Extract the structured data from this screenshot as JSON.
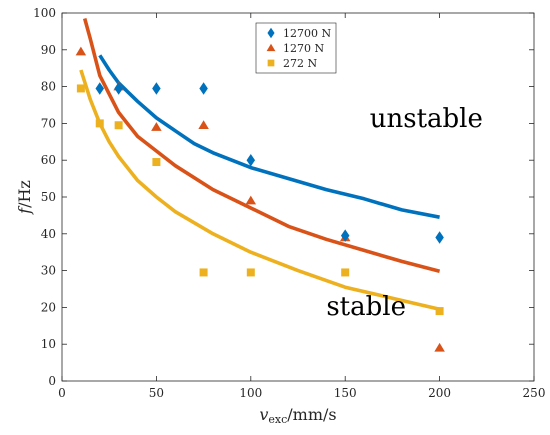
{
  "chart_data": {
    "type": "scatter",
    "xlabel_main": "v",
    "xlabel_sub": "exc",
    "xlabel_unit": "/mm/s",
    "ylabel_main": "f",
    "ylabel_unit": "/Hz",
    "xlim": [
      0,
      250
    ],
    "ylim": [
      0,
      100
    ],
    "xticks": [
      0,
      50,
      100,
      150,
      200,
      250
    ],
    "yticks": [
      0,
      10,
      20,
      30,
      40,
      50,
      60,
      70,
      80,
      90,
      100
    ],
    "grid": false,
    "legend_position": "top-center",
    "annotations": [
      {
        "text": "unstable",
        "x": 163,
        "y": 69
      },
      {
        "text": "stable",
        "x": 140,
        "y": 18
      }
    ],
    "series": [
      {
        "name": "12700 N",
        "color": "#0072BD",
        "marker": "diamond",
        "points": [
          [
            20,
            79.5
          ],
          [
            30,
            79.5
          ],
          [
            50,
            79.5
          ],
          [
            75,
            79.5
          ],
          [
            100,
            60
          ],
          [
            150,
            39.5
          ],
          [
            200,
            39
          ]
        ],
        "curve": [
          [
            20,
            88.5
          ],
          [
            25,
            84.5
          ],
          [
            30,
            81
          ],
          [
            40,
            76
          ],
          [
            50,
            71.5
          ],
          [
            60,
            68
          ],
          [
            70,
            64.5
          ],
          [
            80,
            62
          ],
          [
            90,
            60
          ],
          [
            100,
            58
          ],
          [
            120,
            55
          ],
          [
            140,
            52
          ],
          [
            160,
            49.5
          ],
          [
            180,
            46.5
          ],
          [
            200,
            44.5
          ]
        ]
      },
      {
        "name": "1270 N",
        "color": "#D95319",
        "marker": "triangle",
        "points": [
          [
            10,
            89.5
          ],
          [
            30,
            80
          ],
          [
            50,
            69
          ],
          [
            75,
            69.5
          ],
          [
            100,
            49
          ],
          [
            150,
            39
          ],
          [
            200,
            9
          ]
        ],
        "curve": [
          [
            12,
            98.5
          ],
          [
            15,
            93
          ],
          [
            20,
            83
          ],
          [
            30,
            73
          ],
          [
            40,
            66.5
          ],
          [
            50,
            62.5
          ],
          [
            60,
            58.5
          ],
          [
            80,
            52
          ],
          [
            100,
            47
          ],
          [
            120,
            42
          ],
          [
            140,
            38.5
          ],
          [
            160,
            35.5
          ],
          [
            180,
            32.5
          ],
          [
            200,
            29.8
          ]
        ]
      },
      {
        "name": "272 N",
        "color": "#EDB120",
        "marker": "square",
        "points": [
          [
            10,
            79.5
          ],
          [
            20,
            70
          ],
          [
            30,
            69.5
          ],
          [
            50,
            59.5
          ],
          [
            75,
            29.5
          ],
          [
            100,
            29.5
          ],
          [
            150,
            29.5
          ],
          [
            200,
            19
          ]
        ],
        "curve": [
          [
            10,
            84.5
          ],
          [
            15,
            76.5
          ],
          [
            20,
            70
          ],
          [
            25,
            65
          ],
          [
            30,
            61
          ],
          [
            40,
            54.5
          ],
          [
            50,
            50
          ],
          [
            60,
            46
          ],
          [
            80,
            40
          ],
          [
            100,
            35
          ],
          [
            125,
            30
          ],
          [
            150,
            25.5
          ],
          [
            175,
            22.5
          ],
          [
            200,
            19.5
          ]
        ]
      }
    ]
  }
}
